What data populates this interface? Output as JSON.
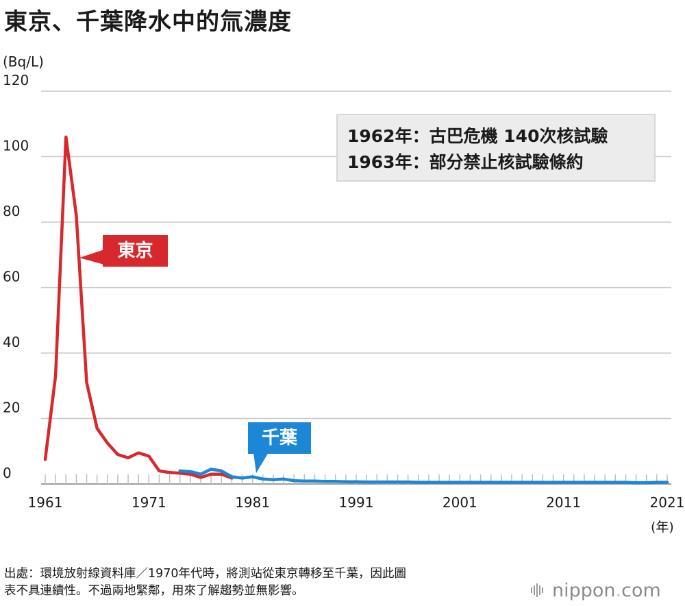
{
  "title": "東京、千葉降水中的氚濃度",
  "ylabel": "(Bq/L)",
  "xlabel": "(年)",
  "annotation": {
    "line1": "1962年：古巴危機 140次核試驗",
    "line2": "1963年：部分禁止核試驗條約"
  },
  "labels": {
    "tokyo": "東京",
    "chiba": "千葉"
  },
  "footer": {
    "line1": "出處：環境放射線資料庫／1970年代時，將測站從東京轉移至千葉，因此圖",
    "line2": "表不具連續性。不過兩地緊鄰，用來了解趨勢並無影響。"
  },
  "logo": {
    "main": "nippon",
    "dot": ".",
    "suffix": "com"
  },
  "colors": {
    "tokyo": "#d7282d",
    "chiba": "#1c87d6",
    "grid": "#c8c8c8",
    "axis": "#bdbdbd"
  },
  "chart_data": {
    "type": "line",
    "title": "東京、千葉降水中的氚濃度",
    "xlabel": "(年)",
    "ylabel": "(Bq/L)",
    "xlim": [
      1961,
      2021
    ],
    "ylim": [
      0,
      120
    ],
    "yticks": [
      0,
      20,
      40,
      60,
      80,
      100,
      120
    ],
    "xticks": [
      1961,
      1971,
      1981,
      1991,
      2001,
      2011,
      2021
    ],
    "grid": true,
    "series": [
      {
        "name": "東京",
        "color": "#d7282d",
        "x": [
          1961,
          1962,
          1963,
          1964,
          1965,
          1966,
          1967,
          1968,
          1969,
          1970,
          1971,
          1972,
          1973,
          1974,
          1975,
          1976,
          1977,
          1978,
          1979
        ],
        "values": [
          7.5,
          33,
          106,
          82,
          31,
          17,
          12.5,
          9,
          8,
          9.5,
          8.5,
          4,
          3.5,
          3.3,
          3,
          2,
          3,
          3,
          1.8
        ]
      },
      {
        "name": "千葉",
        "color": "#1c87d6",
        "x": [
          1974,
          1975,
          1976,
          1977,
          1978,
          1979,
          1980,
          1981,
          1982,
          1983,
          1984,
          1985,
          1986,
          1987,
          1988,
          1989,
          1990,
          1991,
          1992,
          1993,
          1994,
          1995,
          1996,
          1997,
          1998,
          1999,
          2000,
          2001,
          2002,
          2003,
          2004,
          2005,
          2006,
          2007,
          2008,
          2009,
          2010,
          2011,
          2012,
          2013,
          2014,
          2015,
          2016,
          2017,
          2018,
          2019,
          2020,
          2021
        ],
        "values": [
          4,
          3.8,
          3,
          4.5,
          4,
          2.2,
          1.8,
          2.2,
          1.5,
          1.3,
          1.5,
          1,
          0.9,
          0.9,
          0.8,
          0.8,
          0.7,
          0.7,
          0.6,
          0.6,
          0.6,
          0.6,
          0.6,
          0.5,
          0.5,
          0.5,
          0.5,
          0.5,
          0.5,
          0.5,
          0.5,
          0.5,
          0.5,
          0.5,
          0.5,
          0.5,
          0.5,
          0.5,
          0.5,
          0.5,
          0.5,
          0.5,
          0.5,
          0.5,
          0.4,
          0.4,
          0.5,
          0.5
        ]
      }
    ]
  }
}
